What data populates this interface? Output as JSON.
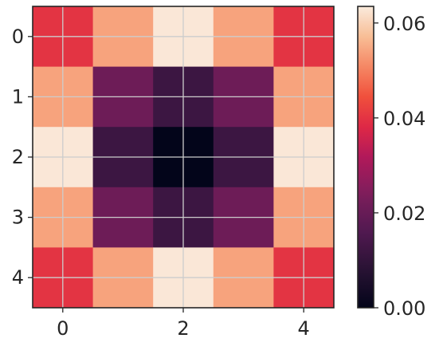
{
  "chart_data": {
    "type": "heatmap",
    "title": "",
    "xlabel": "",
    "ylabel": "",
    "x_ticks": [
      "0",
      "2",
      "4"
    ],
    "y_ticks": [
      "0",
      "1",
      "2",
      "3",
      "4"
    ],
    "x_tick_positions": [
      0,
      2,
      4
    ],
    "y_tick_positions": [
      0,
      1,
      2,
      3,
      4
    ],
    "values": [
      [
        0.04,
        0.054,
        0.063,
        0.054,
        0.04
      ],
      [
        0.054,
        0.021,
        0.012,
        0.021,
        0.054
      ],
      [
        0.063,
        0.012,
        0.0,
        0.012,
        0.063
      ],
      [
        0.054,
        0.021,
        0.012,
        0.021,
        0.054
      ],
      [
        0.04,
        0.054,
        0.063,
        0.054,
        0.04
      ]
    ],
    "colorbar": {
      "min": 0.0,
      "max": 0.0635,
      "ticks": [
        0.0,
        0.02,
        0.04,
        0.06
      ],
      "tick_labels": [
        "0.00",
        "0.02",
        "0.04",
        "0.06"
      ]
    },
    "colormap": "rocket",
    "grid": true,
    "colors": {
      "grid": "#cccccc",
      "frame": "#262626",
      "tick_text": "#262626"
    }
  }
}
